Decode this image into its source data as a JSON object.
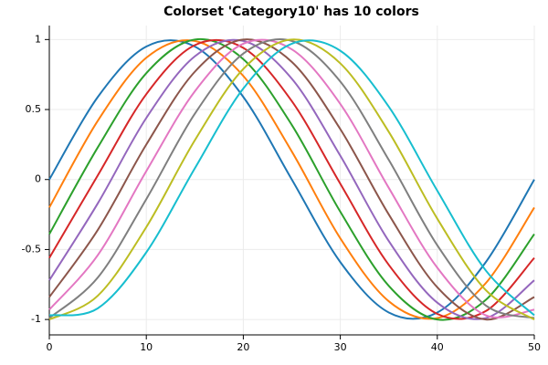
{
  "chart_data": {
    "type": "line",
    "title": "Colorset 'Category10' has 10 colors",
    "x": [
      0,
      5,
      10,
      15,
      20,
      25,
      30,
      35,
      40,
      45,
      50
    ],
    "series": [
      {
        "color": "#1f77b4",
        "values": [
          0,
          0.59,
          0.95,
          0.95,
          0.59,
          0,
          -0.59,
          -0.95,
          -0.95,
          -0.59,
          0
        ]
      },
      {
        "color": "#ff7f0e",
        "values": [
          -0.2,
          0.42,
          0.87,
          0.99,
          0.74,
          0.2,
          -0.42,
          -0.87,
          -0.99,
          -0.74,
          -0.2
        ]
      },
      {
        "color": "#2ca02c",
        "values": [
          -0.39,
          0.23,
          0.76,
          1.0,
          0.86,
          0.39,
          -0.23,
          -0.76,
          -1.0,
          -0.86,
          -0.39
        ]
      },
      {
        "color": "#d62728",
        "values": [
          -0.56,
          0.03,
          0.61,
          0.96,
          0.94,
          0.56,
          -0.03,
          -0.61,
          -0.96,
          -0.94,
          -0.56
        ]
      },
      {
        "color": "#9467bd",
        "values": [
          -0.72,
          -0.17,
          0.44,
          0.88,
          0.99,
          0.72,
          0.17,
          -0.44,
          -0.88,
          -0.99,
          -0.72
        ]
      },
      {
        "color": "#8c564b",
        "values": [
          -0.84,
          -0.36,
          0.25,
          0.77,
          1.0,
          0.84,
          0.36,
          -0.25,
          -0.77,
          -1.0,
          -0.84
        ]
      },
      {
        "color": "#e377c2",
        "values": [
          -0.93,
          -0.54,
          0.06,
          0.63,
          0.97,
          0.93,
          0.54,
          -0.06,
          -0.63,
          -0.97,
          -0.93
        ]
      },
      {
        "color": "#7f7f7f",
        "values": [
          -0.99,
          -0.7,
          -0.14,
          0.47,
          0.9,
          0.99,
          0.7,
          0.14,
          -0.47,
          -0.9,
          -0.99
        ]
      },
      {
        "color": "#bcbd22",
        "values": [
          -1.0,
          -0.83,
          -0.34,
          0.28,
          0.79,
          1.0,
          0.83,
          0.34,
          -0.28,
          -0.79,
          -1.0
        ]
      },
      {
        "color": "#17becf",
        "values": [
          -0.97,
          -0.92,
          -0.52,
          0.08,
          0.65,
          0.97,
          0.92,
          0.52,
          -0.08,
          -0.65,
          -0.97
        ]
      }
    ],
    "xlim": [
      0,
      50
    ],
    "xticks": [
      0,
      10,
      20,
      30,
      40,
      50
    ],
    "ylim": [
      -1.11,
      1.1
    ],
    "yticks": [
      -1,
      -0.5,
      0,
      0.5,
      1
    ],
    "grid": true
  }
}
